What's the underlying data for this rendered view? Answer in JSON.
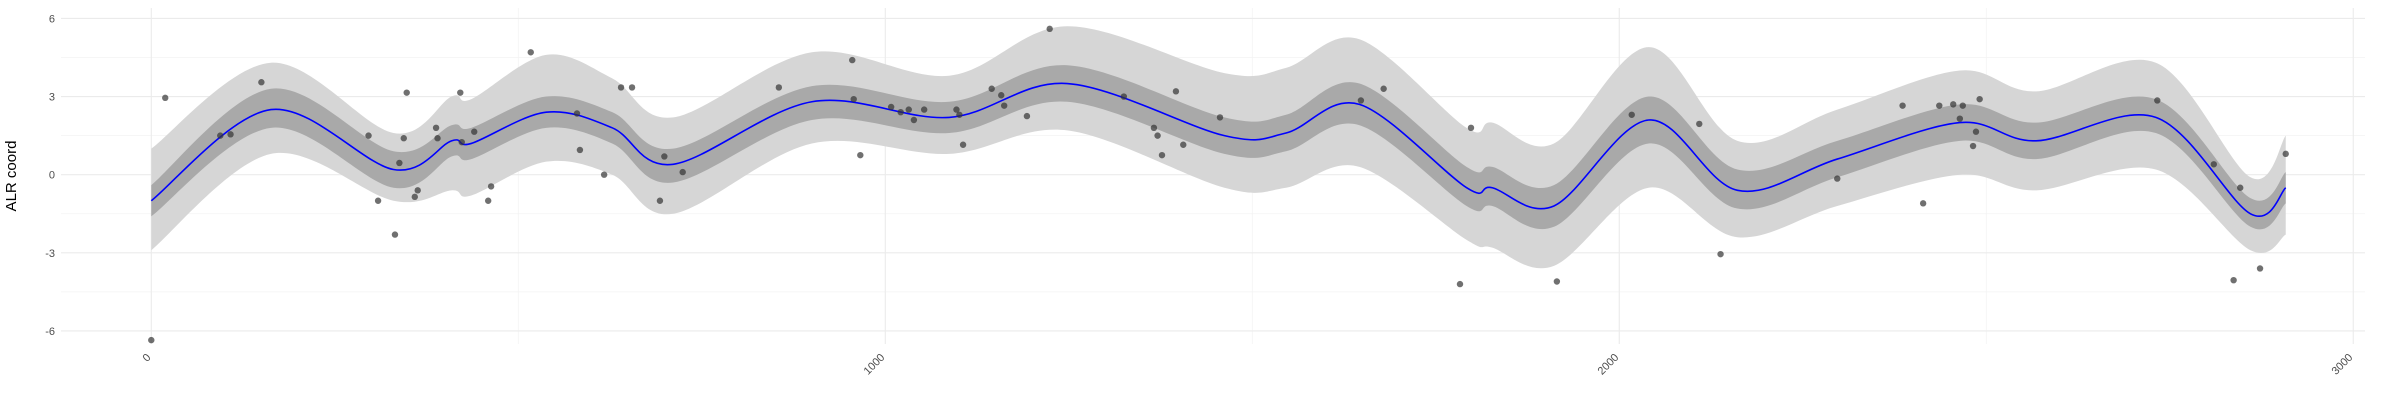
{
  "chart_data": {
    "type": "scatter",
    "y_label": "ALR coord",
    "xlim": [
      -123,
      3016
    ],
    "ylim": [
      -6.5,
      6.4
    ],
    "xticks": [
      0,
      1000,
      2000,
      3000
    ],
    "yticks": [
      -6,
      -3,
      0,
      3,
      6
    ],
    "grid": true,
    "point_color": "#333333",
    "points": {
      "x": [
        0,
        19,
        94,
        108,
        150,
        296,
        309,
        332,
        338,
        344,
        348,
        359,
        363,
        388,
        390,
        421,
        423,
        440,
        459,
        463,
        517,
        580,
        584,
        617,
        640,
        655,
        693,
        699,
        724,
        855,
        955,
        957,
        966,
        1008,
        1021,
        1032,
        1039,
        1053,
        1097,
        1101,
        1106,
        1145,
        1158,
        1162,
        1193,
        1224,
        1325,
        1366,
        1371,
        1377,
        1396,
        1406,
        1456,
        1648,
        1679,
        1783,
        1798,
        1915,
        2017,
        2109,
        2138,
        2297,
        2386,
        2414,
        2436,
        2455,
        2468,
        2464,
        2482,
        2486,
        2491,
        2733,
        2810,
        2837,
        2846,
        2873,
        2908
      ],
      "y": [
        -6.35,
        2.95,
        1.5,
        1.55,
        3.55,
        1.5,
        -1.0,
        -2.3,
        0.45,
        1.4,
        3.15,
        -0.85,
        -0.6,
        1.8,
        1.4,
        3.15,
        1.25,
        1.65,
        -1.0,
        -0.45,
        4.7,
        2.35,
        0.95,
        0.0,
        3.35,
        3.35,
        -1.0,
        0.7,
        0.1,
        3.35,
        4.4,
        2.9,
        0.75,
        2.6,
        2.4,
        2.5,
        2.1,
        2.5,
        2.5,
        2.3,
        1.15,
        3.3,
        3.05,
        2.65,
        2.25,
        5.6,
        3.0,
        1.8,
        1.5,
        0.75,
        3.2,
        1.15,
        2.2,
        2.85,
        3.3,
        -4.2,
        1.8,
        -4.1,
        2.3,
        1.95,
        -3.05,
        -0.15,
        2.65,
        -1.1,
        2.65,
        2.7,
        2.65,
        2.15,
        1.1,
        1.65,
        2.9,
        2.85,
        0.4,
        -4.05,
        -0.5,
        -3.6,
        0.8
      ]
    },
    "fit": {
      "line_color": "#0000ff",
      "inner_color": "#a9a9a9",
      "outer_color": "#d6d6d6",
      "x": [
        0,
        163,
        330,
        409,
        436,
        538,
        628,
        711,
        900,
        1087,
        1248,
        1462,
        1546,
        1646,
        1792,
        1827,
        1911,
        2040,
        2161,
        2297,
        2464,
        2568,
        2731,
        2860,
        2908
      ],
      "mean": [
        -1.0,
        2.5,
        0.2,
        1.3,
        1.2,
        2.4,
        1.8,
        0.4,
        2.8,
        2.2,
        3.5,
        1.5,
        1.6,
        2.7,
        -0.5,
        -0.5,
        -1.2,
        2.1,
        -0.6,
        0.6,
        2.0,
        1.3,
        2.2,
        -1.5,
        -0.5
      ],
      "inner_lower": [
        -1.6,
        1.8,
        -0.5,
        0.7,
        0.6,
        1.8,
        1.2,
        -0.3,
        2.1,
        1.6,
        2.8,
        0.8,
        0.9,
        1.9,
        -1.2,
        -1.2,
        -2.0,
        1.2,
        -1.3,
        -0.1,
        1.3,
        0.6,
        1.6,
        -2.0,
        -1.1
      ],
      "inner_upper": [
        -0.4,
        3.3,
        0.9,
        1.9,
        1.8,
        3.0,
        2.4,
        1.0,
        3.4,
        2.8,
        4.2,
        2.2,
        2.3,
        3.5,
        0.3,
        0.3,
        -0.4,
        3.0,
        0.2,
        1.3,
        2.7,
        2.0,
        2.9,
        -0.9,
        0.1
      ],
      "outer_lower": [
        -2.9,
        0.8,
        -1.0,
        -0.6,
        -0.8,
        0.5,
        0.0,
        -1.5,
        1.2,
        0.8,
        1.7,
        -0.5,
        -0.5,
        0.3,
        -2.5,
        -2.8,
        -3.5,
        -0.5,
        -2.4,
        -1.2,
        0.0,
        -0.6,
        0.2,
        -2.9,
        -2.3
      ],
      "outer_upper": [
        1.0,
        4.3,
        1.6,
        3.0,
        2.9,
        4.6,
        3.7,
        2.2,
        4.7,
        3.8,
        5.7,
        3.9,
        4.1,
        5.2,
        1.8,
        2.0,
        1.2,
        4.9,
        1.3,
        2.5,
        4.0,
        3.2,
        4.3,
        -0.1,
        1.5
      ]
    }
  }
}
